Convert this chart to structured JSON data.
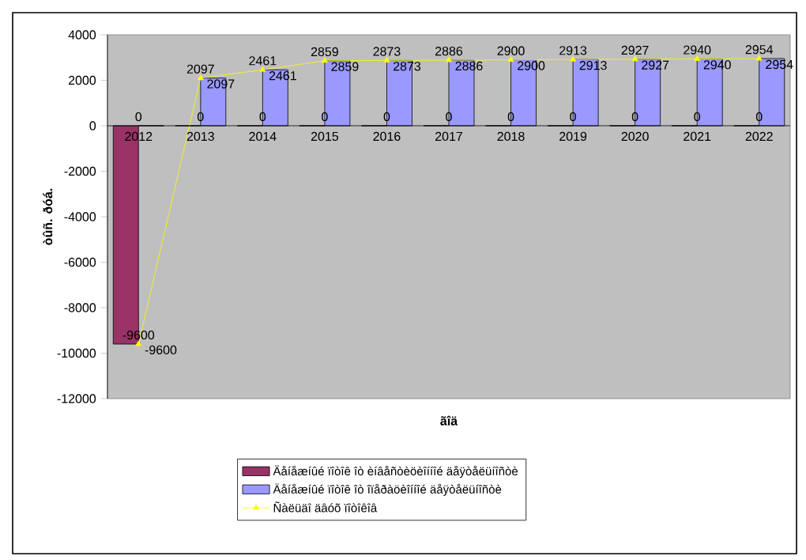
{
  "chart_data": {
    "type": "bar",
    "xlabel": "ãîä",
    "ylabel": "òûñ. ðóá.",
    "categories": [
      "2012",
      "2013",
      "2014",
      "2015",
      "2016",
      "2017",
      "2018",
      "2019",
      "2020",
      "2021",
      "2022"
    ],
    "series": [
      {
        "name": "Äåíåæíûé ïîòîê îò èíâåñòèöèîííîé äåÿòåëüíîñòè",
        "color": "#993366",
        "values": [
          -9600,
          0,
          0,
          0,
          0,
          0,
          0,
          0,
          0,
          0,
          0
        ]
      },
      {
        "name": "Äåíåæíûé ïîòîê îò îïåðàöèîííîé äåÿòåëüíîñòè",
        "color": "#9999ff",
        "values": [
          0,
          2097,
          2461,
          2859,
          2873,
          2886,
          2900,
          2913,
          2927,
          2940,
          2954
        ]
      },
      {
        "name": "Ñàëüäî äâóõ ïîòîêîâ",
        "type": "line",
        "color": "#ffff00",
        "marker": "triangle",
        "values": [
          -9600,
          2097,
          2461,
          2859,
          2873,
          2886,
          2900,
          2913,
          2927,
          2940,
          2954
        ]
      }
    ],
    "ylim": [
      -12000,
      4000
    ],
    "yticks": [
      -12000,
      -10000,
      -8000,
      -6000,
      -4000,
      -2000,
      0,
      2000,
      4000
    ],
    "data_labels": true,
    "legend": "bottom"
  }
}
